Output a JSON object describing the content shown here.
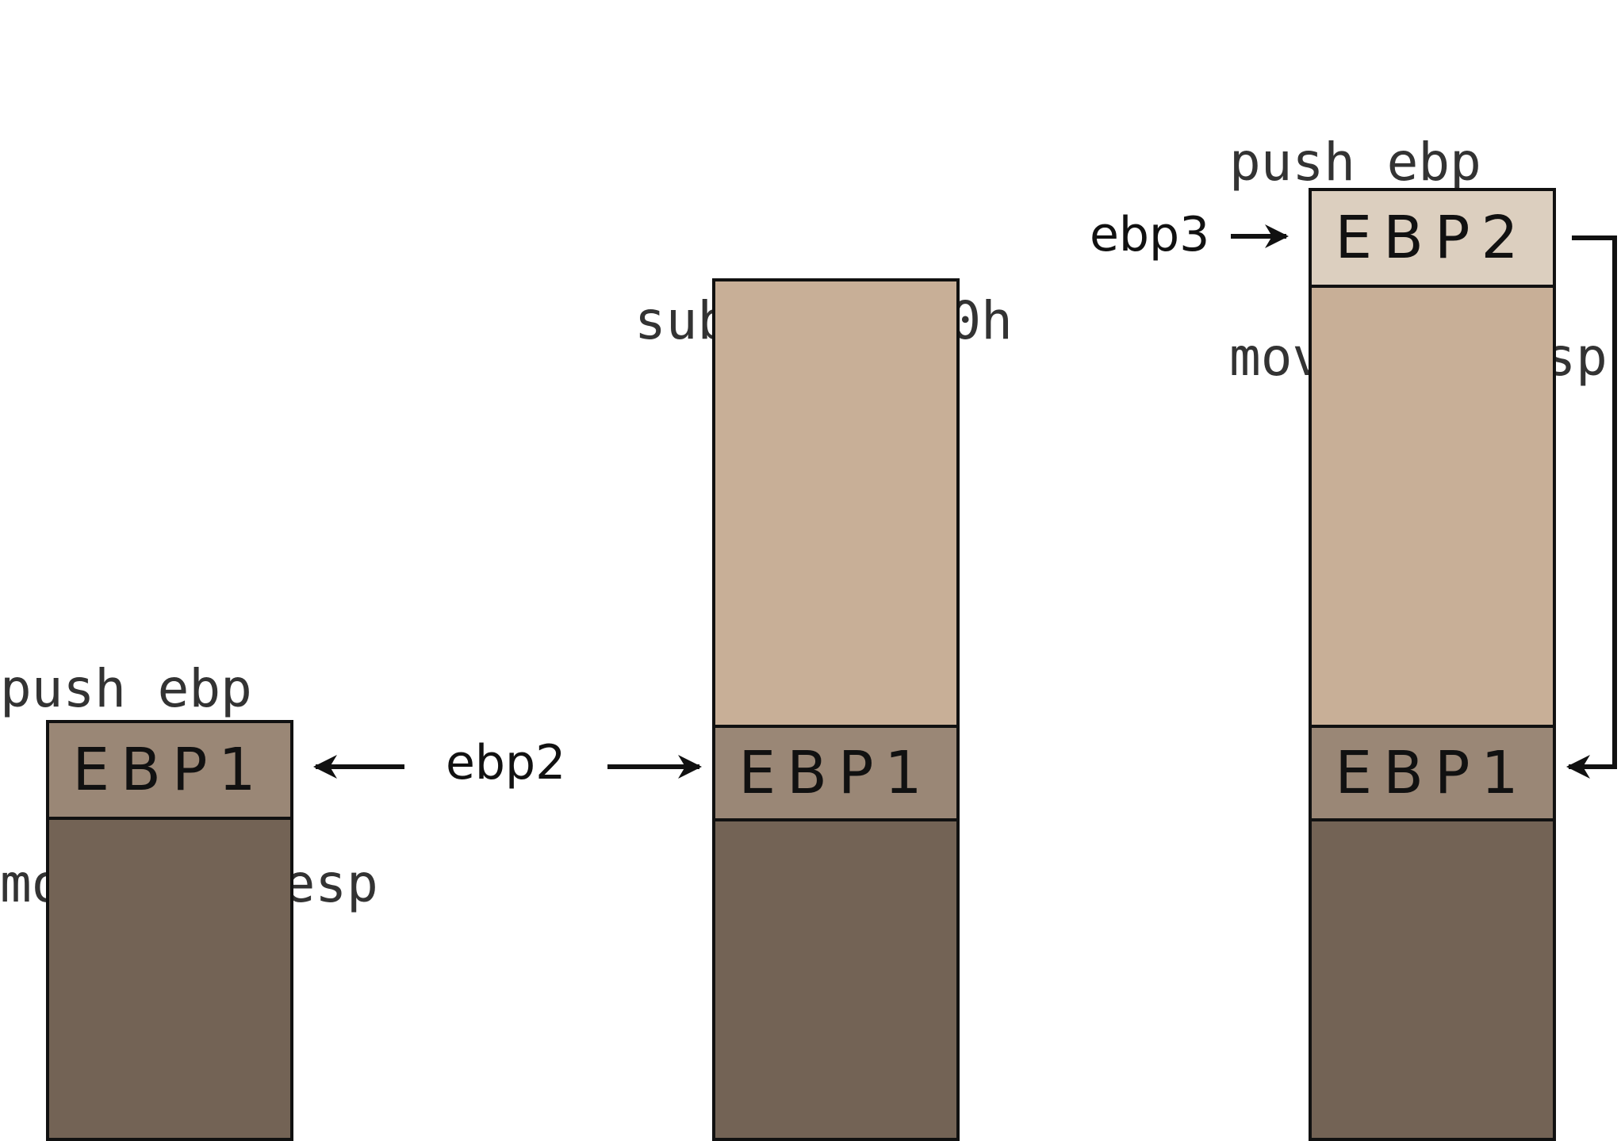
{
  "stage1": {
    "code_lines": [
      "push ebp",
      "mov ebp, esp"
    ],
    "saved_label": "EBP1"
  },
  "stage2": {
    "code_lines": [
      "sub esp, 80h"
    ],
    "saved_label": "EBP1",
    "pointer_label": "ebp2"
  },
  "stage3": {
    "code_lines": [
      "push ebp",
      "mov ebp, esp"
    ],
    "saved_top_label": "EBP2",
    "saved_label": "EBP1",
    "pointer_label": "ebp3"
  },
  "colors": {
    "caller_frame": "#736355",
    "saved_ebp1": "#9a8776",
    "locals": "#c8af97",
    "saved_ebp2": "#dccfbf",
    "stroke": "#111111",
    "code_text": "#333333"
  }
}
